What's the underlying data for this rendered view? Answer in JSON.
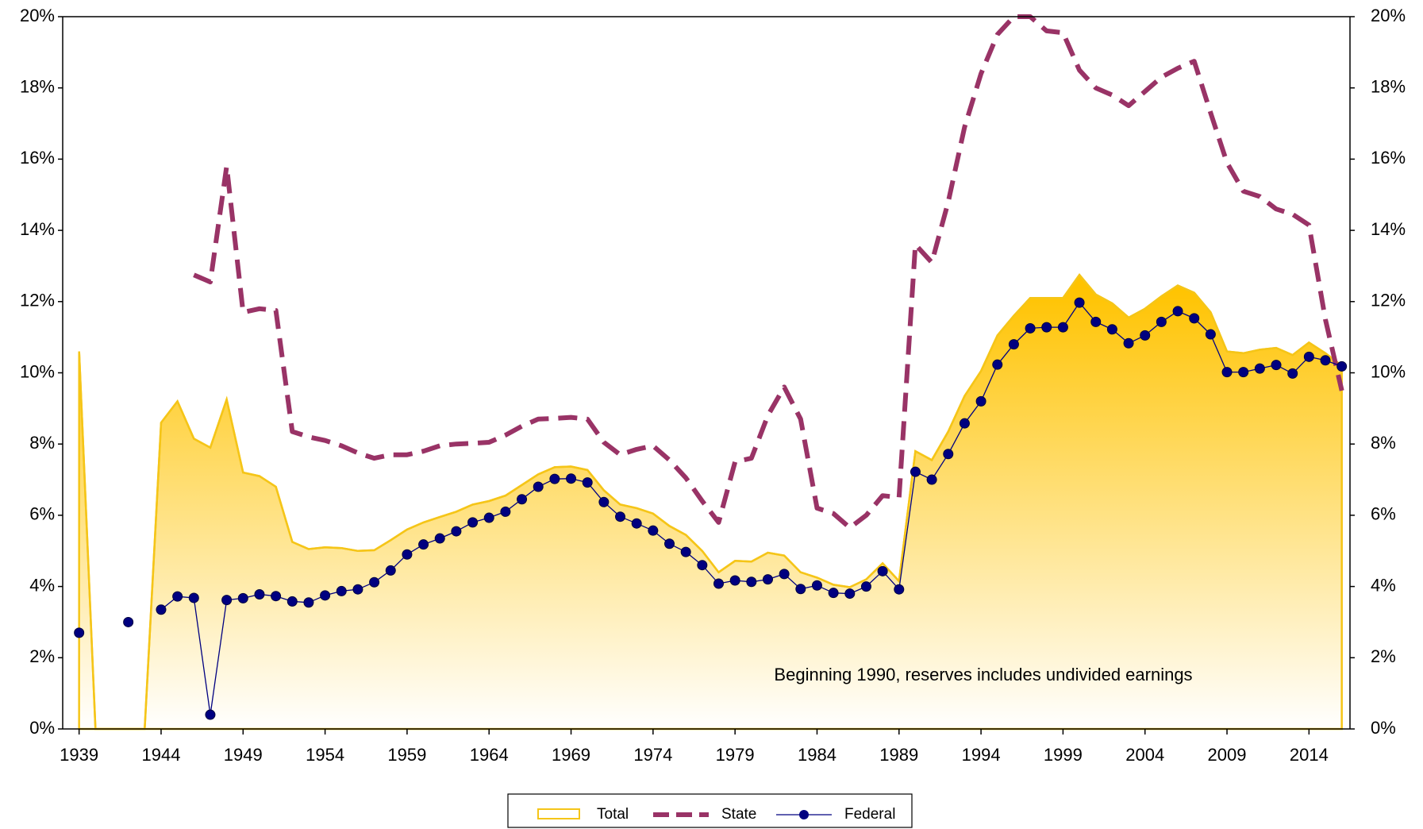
{
  "chart_data": {
    "type": "line",
    "annotation": "Beginning 1990, reserves includes undivided earnings",
    "x": [
      1939,
      1940,
      1941,
      1942,
      1943,
      1944,
      1945,
      1946,
      1947,
      1948,
      1949,
      1950,
      1951,
      1952,
      1953,
      1954,
      1955,
      1956,
      1957,
      1958,
      1959,
      1960,
      1961,
      1962,
      1963,
      1964,
      1965,
      1966,
      1967,
      1968,
      1969,
      1970,
      1971,
      1972,
      1973,
      1974,
      1975,
      1976,
      1977,
      1978,
      1979,
      1980,
      1981,
      1982,
      1983,
      1984,
      1985,
      1986,
      1987,
      1988,
      1989,
      1990,
      1991,
      1992,
      1993,
      1994,
      1995,
      1996,
      1997,
      1998,
      1999,
      2000,
      2001,
      2002,
      2003,
      2004,
      2005,
      2006,
      2007,
      2008,
      2009,
      2010,
      2011,
      2012,
      2013,
      2014,
      2015,
      2016
    ],
    "series": [
      {
        "name": "Total",
        "color": "#F5C518",
        "kind": "area",
        "values": [
          10.6,
          0,
          0,
          0,
          0,
          8.6,
          9.2,
          8.15,
          7.9,
          9.25,
          7.2,
          7.1,
          6.8,
          5.25,
          5.05,
          5.1,
          5.08,
          5.0,
          5.02,
          5.3,
          5.6,
          5.8,
          5.95,
          6.1,
          6.3,
          6.4,
          6.55,
          6.85,
          7.15,
          7.35,
          7.37,
          7.27,
          6.7,
          6.3,
          6.2,
          6.05,
          5.7,
          5.45,
          5.0,
          4.4,
          4.72,
          4.7,
          4.95,
          4.87,
          4.4,
          4.25,
          4.05,
          3.98,
          4.2,
          4.65,
          4.15,
          7.8,
          7.55,
          8.35,
          9.35,
          10.05,
          11.05,
          11.6,
          12.1,
          12.1,
          12.1,
          12.75,
          12.2,
          11.95,
          11.55,
          11.8,
          12.15,
          12.45,
          12.25,
          11.7,
          10.6,
          10.55,
          10.65,
          10.7,
          10.5,
          10.85,
          10.55,
          10.2
        ]
      },
      {
        "name": "State",
        "color": "#993366",
        "kind": "line",
        "dashed": true,
        "values": [
          null,
          null,
          null,
          null,
          null,
          null,
          null,
          12.75,
          12.55,
          15.8,
          11.7,
          11.8,
          11.75,
          8.35,
          8.2,
          8.1,
          7.95,
          7.75,
          7.6,
          7.7,
          7.7,
          7.8,
          7.95,
          8.0,
          8.02,
          8.05,
          8.25,
          8.5,
          8.7,
          8.72,
          8.75,
          8.7,
          8.05,
          7.7,
          7.85,
          7.95,
          7.55,
          7.05,
          6.4,
          5.8,
          7.5,
          7.6,
          8.8,
          9.6,
          8.7,
          6.2,
          6.05,
          5.65,
          6.0,
          6.55,
          6.5,
          13.6,
          13.1,
          14.8,
          16.9,
          18.4,
          19.5,
          20.0,
          20.0,
          19.6,
          19.55,
          18.5,
          18.0,
          17.8,
          17.5,
          17.9,
          18.3,
          18.55,
          18.75,
          17.3,
          15.9,
          15.1,
          14.95,
          14.6,
          14.45,
          14.15,
          11.5,
          9.5
        ]
      },
      {
        "name": "Federal",
        "color": "#000080",
        "kind": "line",
        "markers": true,
        "values": [
          2.7,
          null,
          null,
          3.0,
          null,
          3.35,
          3.72,
          3.68,
          0.4,
          3.62,
          3.67,
          3.78,
          3.73,
          3.58,
          3.55,
          3.75,
          3.87,
          3.92,
          4.12,
          4.45,
          4.9,
          5.18,
          5.35,
          5.55,
          5.8,
          5.93,
          6.1,
          6.45,
          6.8,
          7.02,
          7.03,
          6.92,
          6.37,
          5.96,
          5.77,
          5.57,
          5.2,
          4.97,
          4.6,
          4.08,
          4.17,
          4.13,
          4.2,
          4.35,
          3.93,
          4.03,
          3.82,
          3.8,
          4.0,
          4.43,
          3.92,
          7.22,
          7.0,
          7.72,
          8.58,
          9.2,
          10.23,
          10.8,
          11.25,
          11.28,
          11.28,
          11.97,
          11.43,
          11.22,
          10.83,
          11.05,
          11.43,
          11.73,
          11.53,
          11.08,
          10.02,
          10.02,
          10.12,
          10.22,
          9.98,
          10.45,
          10.35,
          10.18
        ]
      }
    ],
    "xlim": [
      1938,
      2016.5
    ],
    "xticks": [
      1939,
      1944,
      1949,
      1954,
      1959,
      1964,
      1969,
      1974,
      1979,
      1984,
      1989,
      1994,
      1999,
      2004,
      2009,
      2014
    ],
    "ylim": [
      0,
      20
    ],
    "yticks": [
      {
        "value": 0,
        "label": "0%"
      },
      {
        "value": 2,
        "label": "2%"
      },
      {
        "value": 4,
        "label": "4%"
      },
      {
        "value": 6,
        "label": "6%"
      },
      {
        "value": 8,
        "label": "8%"
      },
      {
        "value": 10,
        "label": "10%"
      },
      {
        "value": 12,
        "label": "12%"
      },
      {
        "value": 14,
        "label": "14%"
      },
      {
        "value": 16,
        "label": "16%"
      },
      {
        "value": 18,
        "label": "18%"
      },
      {
        "value": 20,
        "label": "20%"
      }
    ],
    "y2lim": [
      0,
      20
    ],
    "y2ticks": [
      {
        "value": 0,
        "label": "0%"
      },
      {
        "value": 2,
        "label": "2%"
      },
      {
        "value": 4,
        "label": "4%"
      },
      {
        "value": 6,
        "label": "6%"
      },
      {
        "value": 8,
        "label": "8%"
      },
      {
        "value": 10,
        "label": "10%"
      },
      {
        "value": 12,
        "label": "12%"
      },
      {
        "value": 14,
        "label": "14%"
      },
      {
        "value": 16,
        "label": "16%"
      },
      {
        "value": 18,
        "label": "18%"
      },
      {
        "value": 20,
        "label": "20%"
      }
    ],
    "legend": "bottom"
  }
}
